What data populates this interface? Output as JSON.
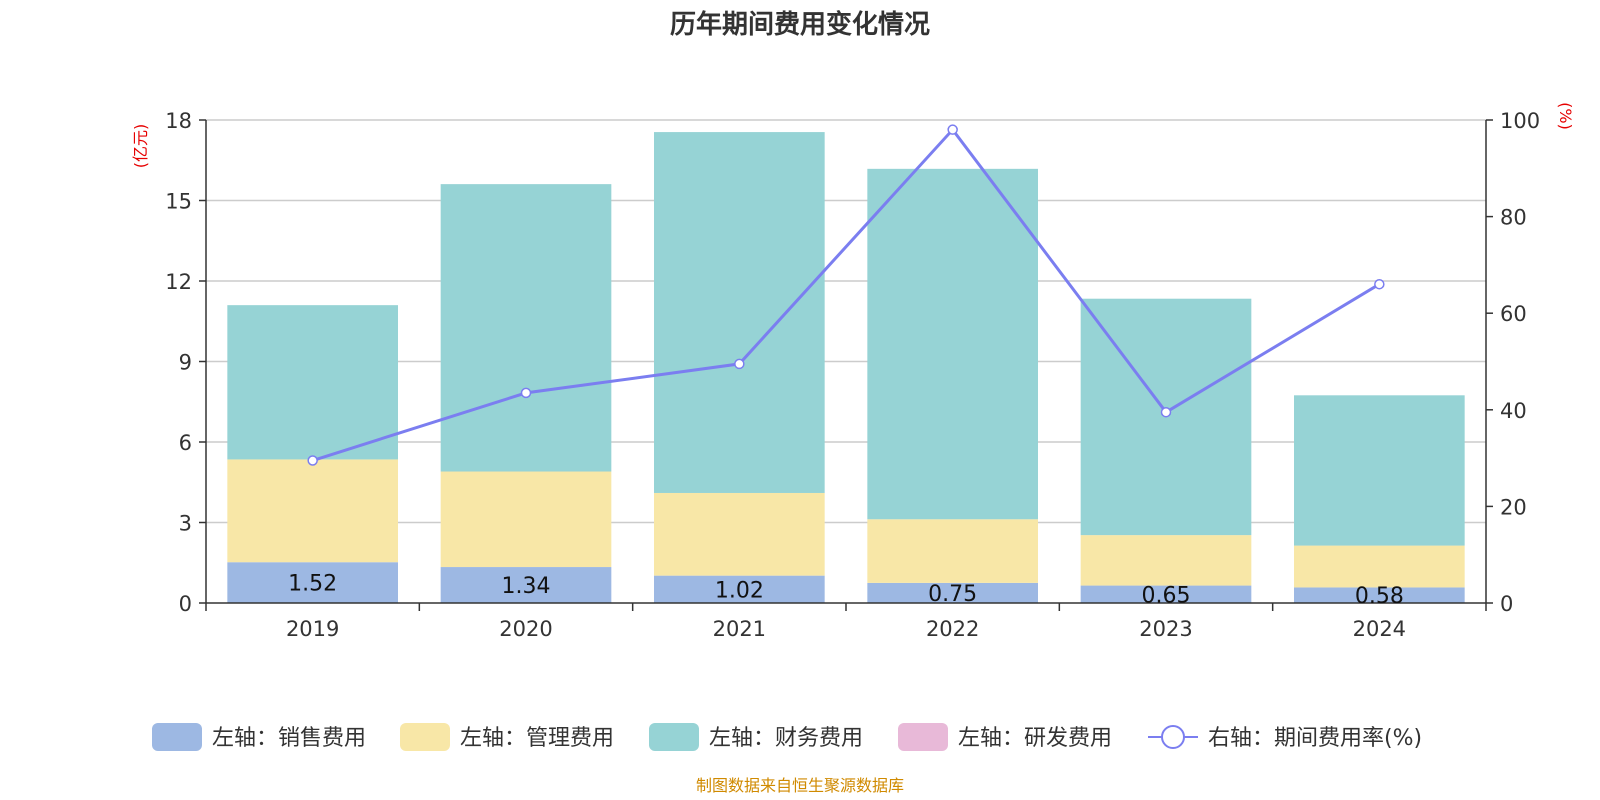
{
  "chart_data": {
    "type": "bar",
    "title": "历年期间费用变化情况",
    "categories": [
      "2019",
      "2020",
      "2021",
      "2022",
      "2023",
      "2024"
    ],
    "left_axis": {
      "unit": "(亿元)",
      "ylim": [
        0,
        18
      ],
      "ticks": [
        "0",
        "3",
        "6",
        "9",
        "12",
        "15",
        "18"
      ]
    },
    "right_axis": {
      "unit": "(%)",
      "ylim": [
        0,
        100
      ],
      "ticks": [
        "0",
        "20",
        "40",
        "60",
        "80",
        "100"
      ]
    },
    "series": [
      {
        "name": "左轴：销售费用",
        "kind": "bar",
        "axis": "left",
        "color": "#9db8e3",
        "values": [
          1.52,
          1.34,
          1.02,
          0.75,
          0.65,
          0.58
        ],
        "labels": [
          "1.52",
          "1.34",
          "1.02",
          "0.75",
          "0.65",
          "0.58"
        ]
      },
      {
        "name": "左轴：管理费用",
        "kind": "bar",
        "axis": "left",
        "color": "#f8e7a7",
        "values": [
          3.83,
          3.56,
          3.08,
          2.37,
          1.88,
          1.56
        ]
      },
      {
        "name": "左轴：财务费用",
        "kind": "bar",
        "axis": "left",
        "color": "#96d3d5",
        "values": [
          5.75,
          10.71,
          13.45,
          13.06,
          8.81,
          5.6
        ]
      },
      {
        "name": "左轴：研发费用",
        "kind": "bar",
        "axis": "left",
        "color": "#e8b9d8",
        "values": [
          0,
          0,
          0,
          0,
          0,
          0
        ]
      },
      {
        "name": "右轴：期间费用率(%)",
        "kind": "line",
        "axis": "right",
        "color": "#7b7ef0",
        "values": [
          29.5,
          43.5,
          49.5,
          98,
          39.5,
          66
        ]
      }
    ],
    "grid": true,
    "legend_position": "bottom",
    "source": "制图数据来自恒生聚源数据库"
  }
}
